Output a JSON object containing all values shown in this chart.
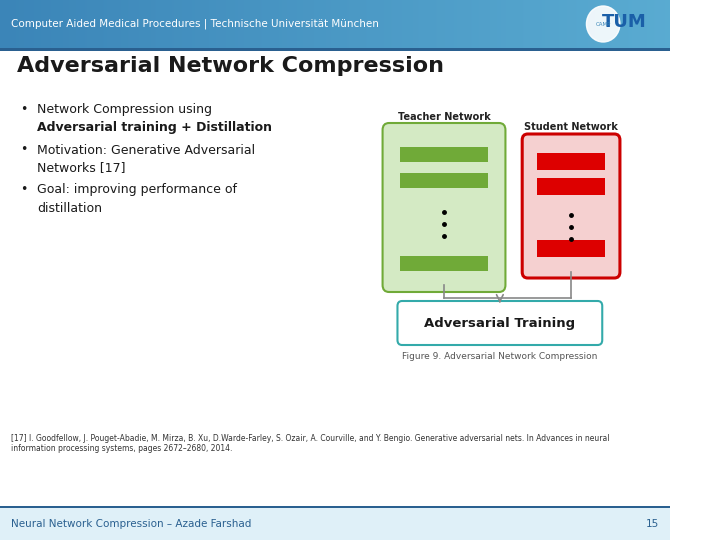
{
  "title": "Adversarial Network Compression",
  "header_text": "Computer Aided Medical Procedures | Technische Universität München",
  "footer_text": "Neural Network Compression – Azade Farshad",
  "footer_num": "15",
  "teacher_label": "Teacher Network",
  "student_label": "Student Network",
  "adv_training_label": "Adversarial Training",
  "figure_caption": "Figure 9. Adversarial Network Compression",
  "reference_text": "[17] I. Goodfellow, J. Pouget-Abadie, M. Mirza, B. Xu, D.Warde-Farley, S. Ozair, A. Courville, and Y. Bengio. Generative adversarial nets. In Advances in neural\ninformation processing systems, pages 2672–2680, 2014.",
  "bg_color": "#ffffff",
  "header_bg_left": "#3a85b8",
  "header_bg_right": "#5baddc",
  "header_stripe": "#2a6090",
  "footer_bar_color": "#2a6090",
  "footer_bg": "#dff0f8",
  "teacher_fill": "#d4eac4",
  "teacher_border": "#70aa38",
  "teacher_bar_fill": "#70aa38",
  "student_fill": "#f5d0d0",
  "student_border": "#cc0000",
  "student_bar_fill": "#dd0000",
  "adv_box_border": "#33aaaa",
  "adv_box_fill": "#ffffff",
  "arrow_color": "#888888",
  "tum_blue": "#2a6090",
  "title_color": "#1a1a1a",
  "bullet_color": "#1a1a1a"
}
